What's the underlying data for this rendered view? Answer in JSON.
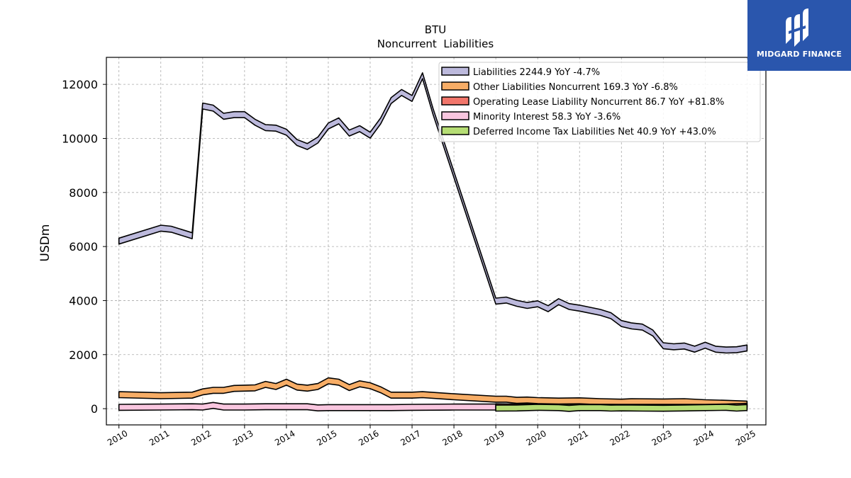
{
  "brand": {
    "name": "MIDGARD FINANCE",
    "background": "#2a56ad"
  },
  "chart_data": {
    "type": "area",
    "title": "BTU",
    "subtitle": "Noncurrent  Liabilities",
    "ylabel": "USDm",
    "xlabel": "",
    "xlim": [
      2009.7,
      2025.45
    ],
    "ylim": [
      -600,
      13000
    ],
    "x_ticks": [
      "2010",
      "2011",
      "2012",
      "2013",
      "2014",
      "2015",
      "2016",
      "2017",
      "2018",
      "2019",
      "2020",
      "2021",
      "2022",
      "2023",
      "2024",
      "2025"
    ],
    "y_ticks": [
      "0",
      "2000",
      "4000",
      "6000",
      "8000",
      "10000",
      "12000"
    ],
    "grid": true,
    "legend_position": "top-right",
    "series": [
      {
        "name": "Liabilities  2244.9 YoY -4.7%",
        "color": "#bcb9dc",
        "points": [
          [
            2010.0,
            6200
          ],
          [
            2011.0,
            6680
          ],
          [
            2011.25,
            6640
          ],
          [
            2011.75,
            6400
          ],
          [
            2012.0,
            11200
          ],
          [
            2012.25,
            11120
          ],
          [
            2012.5,
            10820
          ],
          [
            2012.75,
            10880
          ],
          [
            2013.0,
            10880
          ],
          [
            2013.25,
            10600
          ],
          [
            2013.5,
            10400
          ],
          [
            2013.75,
            10380
          ],
          [
            2014.0,
            10230
          ],
          [
            2014.25,
            9850
          ],
          [
            2014.5,
            9700
          ],
          [
            2014.75,
            9940
          ],
          [
            2015.0,
            10460
          ],
          [
            2015.25,
            10650
          ],
          [
            2015.5,
            10200
          ],
          [
            2015.75,
            10360
          ],
          [
            2016.0,
            10120
          ],
          [
            2016.25,
            10650
          ],
          [
            2016.5,
            11400
          ],
          [
            2016.75,
            11700
          ],
          [
            2017.0,
            11480
          ],
          [
            2017.25,
            12320
          ],
          [
            2017.5,
            11000
          ],
          [
            2019.0,
            3980
          ],
          [
            2019.25,
            4020
          ],
          [
            2019.5,
            3900
          ],
          [
            2019.75,
            3820
          ],
          [
            2020.0,
            3880
          ],
          [
            2020.25,
            3700
          ],
          [
            2020.5,
            3960
          ],
          [
            2020.75,
            3780
          ],
          [
            2021.0,
            3720
          ],
          [
            2021.5,
            3560
          ],
          [
            2021.75,
            3440
          ],
          [
            2022.0,
            3150
          ],
          [
            2022.25,
            3060
          ],
          [
            2022.5,
            3020
          ],
          [
            2022.75,
            2800
          ],
          [
            2023.0,
            2330
          ],
          [
            2023.25,
            2290
          ],
          [
            2023.5,
            2320
          ],
          [
            2023.75,
            2200
          ],
          [
            2024.0,
            2350
          ],
          [
            2024.25,
            2200
          ],
          [
            2024.5,
            2170
          ],
          [
            2024.75,
            2180
          ],
          [
            2025.0,
            2245
          ]
        ]
      },
      {
        "name": "Other Liabilities Noncurrent  169.3 YoY -6.8%",
        "color": "#f7ad66",
        "points": [
          [
            2010.0,
            520
          ],
          [
            2011.0,
            480
          ],
          [
            2011.75,
            500
          ],
          [
            2012.0,
            620
          ],
          [
            2012.25,
            680
          ],
          [
            2012.5,
            680
          ],
          [
            2012.75,
            750
          ],
          [
            2013.0,
            760
          ],
          [
            2013.25,
            770
          ],
          [
            2013.5,
            900
          ],
          [
            2013.75,
            820
          ],
          [
            2014.0,
            980
          ],
          [
            2014.25,
            800
          ],
          [
            2014.5,
            760
          ],
          [
            2014.75,
            820
          ],
          [
            2015.0,
            1030
          ],
          [
            2015.25,
            980
          ],
          [
            2015.5,
            780
          ],
          [
            2015.75,
            920
          ],
          [
            2016.0,
            850
          ],
          [
            2016.25,
            700
          ],
          [
            2016.5,
            500
          ],
          [
            2017.0,
            500
          ],
          [
            2017.25,
            520
          ],
          [
            2018.0,
            440
          ],
          [
            2019.0,
            350
          ],
          [
            2019.25,
            350
          ],
          [
            2019.5,
            310
          ],
          [
            2019.75,
            320
          ],
          [
            2020.0,
            300
          ],
          [
            2020.5,
            280
          ],
          [
            2021.0,
            290
          ],
          [
            2021.5,
            260
          ],
          [
            2022.0,
            240
          ],
          [
            2022.25,
            260
          ],
          [
            2023.0,
            250
          ],
          [
            2023.5,
            260
          ],
          [
            2024.0,
            220
          ],
          [
            2024.5,
            200
          ],
          [
            2025.0,
            170
          ]
        ]
      },
      {
        "name": "Operating Lease Liability Noncurrent  86.7 YoY +81.8%",
        "color": "#f2766b",
        "points": [
          [
            2019.0,
            70
          ],
          [
            2019.5,
            60
          ],
          [
            2020.0,
            60
          ],
          [
            2021.0,
            55
          ],
          [
            2022.0,
            50
          ],
          [
            2023.0,
            48
          ],
          [
            2024.0,
            48
          ],
          [
            2024.5,
            60
          ],
          [
            2025.0,
            87
          ]
        ]
      },
      {
        "name": "Minority Interest  58.3 YoY -3.6%",
        "color": "#f9c6df",
        "points": [
          [
            2010.0,
            50
          ],
          [
            2011.0,
            60
          ],
          [
            2011.75,
            70
          ],
          [
            2012.0,
            60
          ],
          [
            2012.25,
            120
          ],
          [
            2012.5,
            60
          ],
          [
            2013.0,
            60
          ],
          [
            2013.5,
            70
          ],
          [
            2014.0,
            70
          ],
          [
            2014.5,
            70
          ],
          [
            2014.75,
            30
          ],
          [
            2015.0,
            40
          ],
          [
            2016.0,
            40
          ],
          [
            2016.5,
            40
          ],
          [
            2017.0,
            50
          ],
          [
            2018.0,
            60
          ],
          [
            2019.0,
            60
          ]
        ]
      },
      {
        "name": "Deferred Income Tax Liabilities Net  40.9 YoY +43.0%",
        "color": "#b5dd74",
        "points": [
          [
            2019.0,
            20
          ],
          [
            2019.5,
            25
          ],
          [
            2020.0,
            50
          ],
          [
            2020.5,
            40
          ],
          [
            2020.75,
            10
          ],
          [
            2021.0,
            40
          ],
          [
            2021.5,
            40
          ],
          [
            2021.75,
            20
          ],
          [
            2022.0,
            30
          ],
          [
            2022.5,
            20
          ],
          [
            2023.0,
            15
          ],
          [
            2023.5,
            25
          ],
          [
            2024.0,
            40
          ],
          [
            2024.5,
            50
          ],
          [
            2024.75,
            20
          ],
          [
            2025.0,
            41
          ]
        ]
      }
    ]
  }
}
